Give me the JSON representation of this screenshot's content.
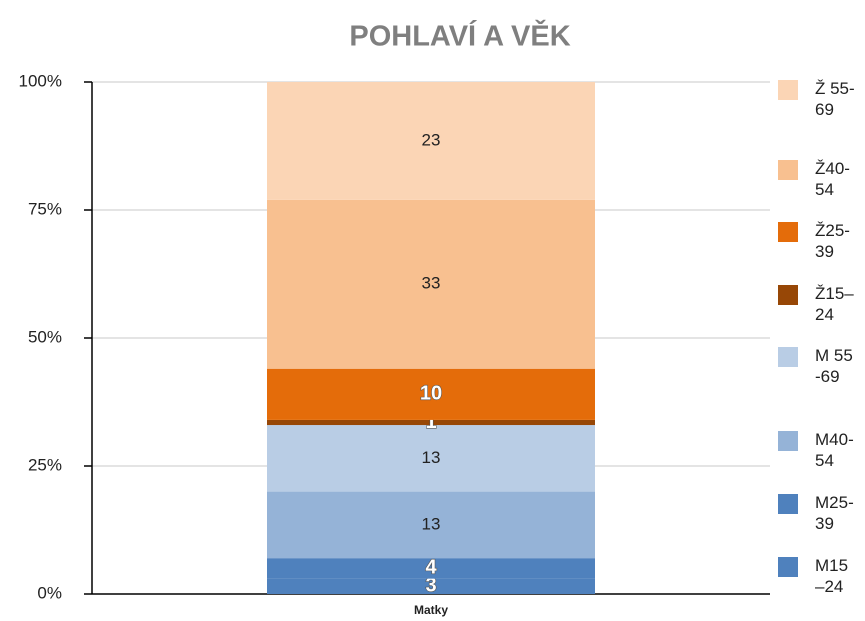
{
  "chart_data": {
    "type": "bar",
    "stacked": true,
    "title": "POHLAVÍ A VĚK",
    "categories": [
      "Matky"
    ],
    "series": [
      {
        "name": "M15 –24",
        "color": "#4f81bd",
        "values": [
          3
        ]
      },
      {
        "name": "M25-39",
        "color": "#4f81bd",
        "values": [
          4
        ]
      },
      {
        "name": "M40-54",
        "color": "#95b3d7",
        "values": [
          13
        ]
      },
      {
        "name": "M 55-69",
        "color": "#b9cde5",
        "values": [
          13
        ]
      },
      {
        "name": "Ž15–24",
        "color": "#974706",
        "values": [
          1
        ]
      },
      {
        "name": "Ž25-39",
        "color": "#e46c0a",
        "values": [
          10
        ]
      },
      {
        "name": "Ž40-54",
        "color": "#f8c090",
        "values": [
          33
        ]
      },
      {
        "name": "Ž 55-69",
        "color": "#fbd5b5",
        "values": [
          23
        ]
      }
    ],
    "ylim": [
      0,
      100
    ],
    "yticks": [
      {
        "value": 0,
        "label": "0%"
      },
      {
        "value": 25,
        "label": "25%"
      },
      {
        "value": 50,
        "label": "50%"
      },
      {
        "value": 75,
        "label": "75%"
      },
      {
        "value": 100,
        "label": "100%"
      }
    ],
    "grid": true,
    "legend": "right"
  }
}
